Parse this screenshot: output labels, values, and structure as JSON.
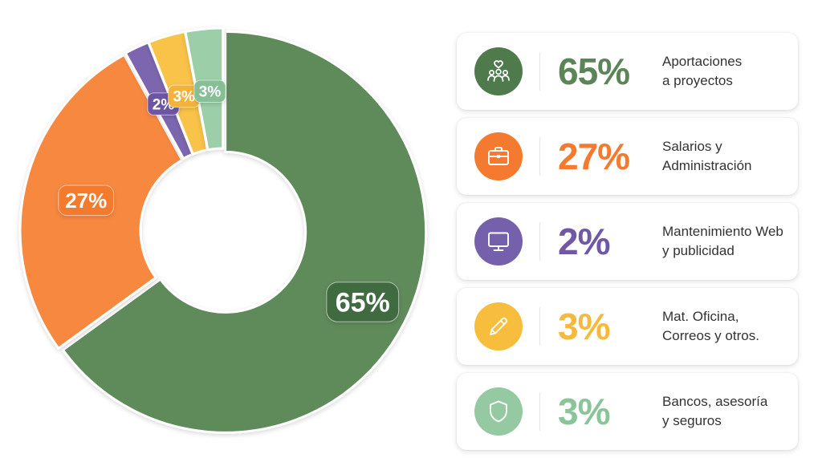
{
  "chart_data": {
    "type": "pie",
    "title": "",
    "categories": [
      "Aportaciones a proyectos",
      "Salarios y Administración",
      "Mantenimiento Web y publicidad",
      "Mat. Oficina, Correos y otros.",
      "Bancos, asesoría y seguros"
    ],
    "values": [
      65,
      27,
      2,
      3,
      3
    ],
    "labels": [
      "65%",
      "27%",
      "2%",
      "3%",
      "3%"
    ],
    "colors": [
      "#5f8a5a",
      "#f7883f",
      "#7d66b0",
      "#f9c24a",
      "#9ccea8"
    ],
    "label_colors": [
      "#3f6a3f",
      "#f47a2f",
      "#6c55a3",
      "#f2b33a",
      "#86be95"
    ],
    "start_angle_deg": 0,
    "direction": "clockwise",
    "donut": true,
    "legend_position": "right"
  },
  "legend": [
    {
      "pct": "65%",
      "line1": "Aportaciones",
      "line2": "a proyectos",
      "icon": "people-heart-icon",
      "color": "#5c8557",
      "iconbg": "#4f7a4c"
    },
    {
      "pct": "27%",
      "line1": "Salarios y",
      "line2": "Administración",
      "icon": "briefcase-icon",
      "color": "#f47a2f",
      "iconbg": "#f47a2f"
    },
    {
      "pct": "2%",
      "line1": "Mantenimiento Web",
      "line2": "y publicidad",
      "icon": "monitor-icon",
      "color": "#6f58a6",
      "iconbg": "#7560ac"
    },
    {
      "pct": "3%",
      "line1": "Mat. Oficina,",
      "line2": "Correos y otros.",
      "icon": "pencil-icon",
      "color": "#f5b93d",
      "iconbg": "#f7bd3c"
    },
    {
      "pct": "3%",
      "line1": "Bancos, asesoría",
      "line2": "y seguros",
      "icon": "shield-icon",
      "color": "#8cc49a",
      "iconbg": "#94c9a2"
    }
  ]
}
